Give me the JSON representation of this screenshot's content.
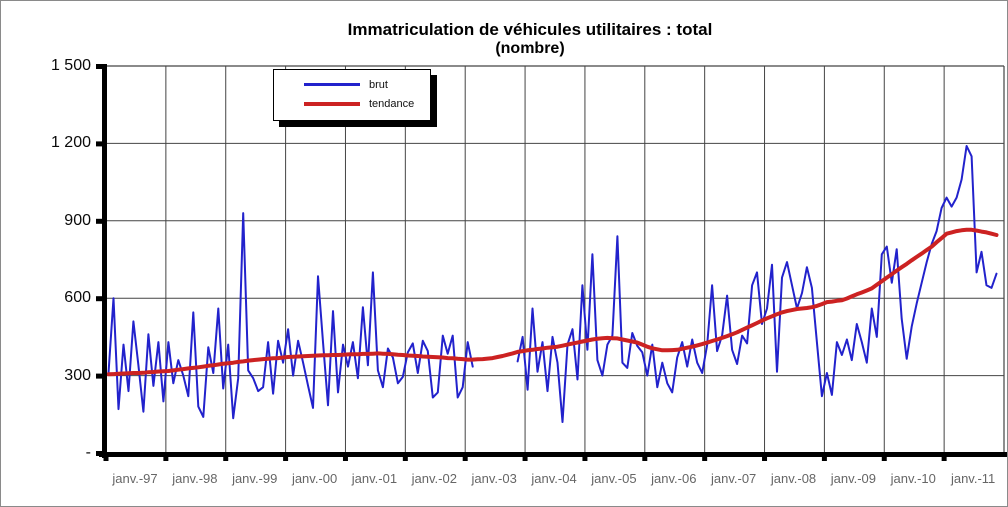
{
  "chart_data": {
    "type": "line",
    "title": "Immatriculation de véhicules utilitaires : total",
    "subtitle": "(nombre)",
    "grid": true,
    "legend_position": "top-left-inside",
    "points_per_year": 12,
    "x_total_months": 180,
    "x_tick_labels": [
      "janv.-97",
      "janv.-98",
      "janv.-99",
      "janv.-00",
      "janv.-01",
      "janv.-02",
      "janv.-03",
      "janv.-04",
      "janv.-05",
      "janv.-06",
      "janv.-07",
      "janv.-08",
      "janv.-09",
      "janv.-10",
      "janv.-11"
    ],
    "y_ticks": [
      1500,
      1200,
      900,
      600,
      300,
      0
    ],
    "y_tick_labels": [
      "1 500",
      "1 200",
      "900",
      "600",
      "300",
      "-"
    ],
    "ylim": [
      0,
      1500
    ],
    "colors": {
      "brut": "#2222CC",
      "tendance": "#CC2222",
      "grid": "#444444",
      "axis": "#000000",
      "x_label": "#666666"
    },
    "series": [
      {
        "name": "brut",
        "color": "#2222CC",
        "stroke_width": 2,
        "values": [
          310,
          600,
          170,
          420,
          240,
          510,
          340,
          160,
          460,
          260,
          430,
          200,
          430,
          270,
          360,
          300,
          220,
          545,
          180,
          140,
          410,
          310,
          560,
          250,
          420,
          135,
          290,
          930,
          320,
          290,
          240,
          255,
          430,
          230,
          435,
          350,
          480,
          300,
          435,
          350,
          260,
          175,
          685,
          430,
          185,
          550,
          235,
          420,
          335,
          430,
          290,
          565,
          340,
          700,
          320,
          255,
          405,
          370,
          270,
          295,
          390,
          425,
          310,
          435,
          395,
          215,
          235,
          455,
          385,
          455,
          215,
          255,
          430,
          335,
          null,
          null,
          null,
          null,
          null,
          null,
          null,
          null,
          355,
          450,
          245,
          560,
          315,
          430,
          240,
          450,
          350,
          120,
          420,
          480,
          285,
          650,
          400,
          770,
          360,
          300,
          420,
          455,
          840,
          350,
          330,
          465,
          415,
          390,
          300,
          420,
          255,
          350,
          270,
          235,
          370,
          430,
          335,
          440,
          350,
          310,
          420,
          650,
          395,
          455,
          610,
          400,
          345,
          455,
          425,
          650,
          700,
          500,
          560,
          730,
          315,
          680,
          740,
          650,
          560,
          620,
          720,
          640,
          430,
          220,
          310,
          225,
          430,
          380,
          440,
          360,
          500,
          430,
          350,
          560,
          450,
          770,
          800,
          660,
          790,
          520,
          365,
          490,
          580,
          660,
          740,
          810,
          860,
          950,
          990,
          955,
          990,
          1060,
          1190,
          1150,
          700,
          780,
          650,
          640,
          695
        ]
      },
      {
        "name": "tendance",
        "color": "#CC2222",
        "stroke_width": 4,
        "values": [
          305,
          306,
          307,
          308,
          309,
          310,
          310,
          311,
          313,
          314,
          316,
          317,
          318,
          320,
          323,
          325,
          328,
          330,
          332,
          335,
          338,
          340,
          343,
          346,
          348,
          350,
          353,
          355,
          358,
          360,
          362,
          364,
          365,
          367,
          368,
          370,
          372,
          373,
          374,
          375,
          376,
          377,
          378,
          379,
          379,
          380,
          380,
          381,
          382,
          383,
          383,
          384,
          384,
          385,
          386,
          385,
          384,
          383,
          381,
          380,
          378,
          377,
          376,
          374,
          373,
          372,
          371,
          370,
          368,
          367,
          365,
          364,
          362,
          362,
          363,
          364,
          366,
          368,
          372,
          376,
          381,
          386,
          392,
          395,
          398,
          400,
          403,
          405,
          408,
          410,
          412,
          416,
          420,
          424,
          428,
          432,
          436,
          440,
          443,
          445,
          446,
          445,
          444,
          440,
          436,
          432,
          428,
          420,
          412,
          406,
          402,
          398,
          398,
          399,
          400,
          404,
          408,
          412,
          417,
          422,
          428,
          434,
          440,
          446,
          453,
          460,
          468,
          477,
          486,
          495,
          504,
          513,
          522,
          530,
          538,
          545,
          550,
          554,
          558,
          560,
          562,
          565,
          570,
          577,
          585,
          587,
          590,
          592,
          599,
          607,
          615,
          622,
          630,
          638,
          652,
          666,
          680,
          693,
          707,
          720,
          733,
          747,
          760,
          773,
          787,
          800,
          817,
          833,
          850,
          855,
          860,
          863,
          865,
          865,
          862,
          858,
          855,
          850,
          845
        ]
      }
    ]
  }
}
